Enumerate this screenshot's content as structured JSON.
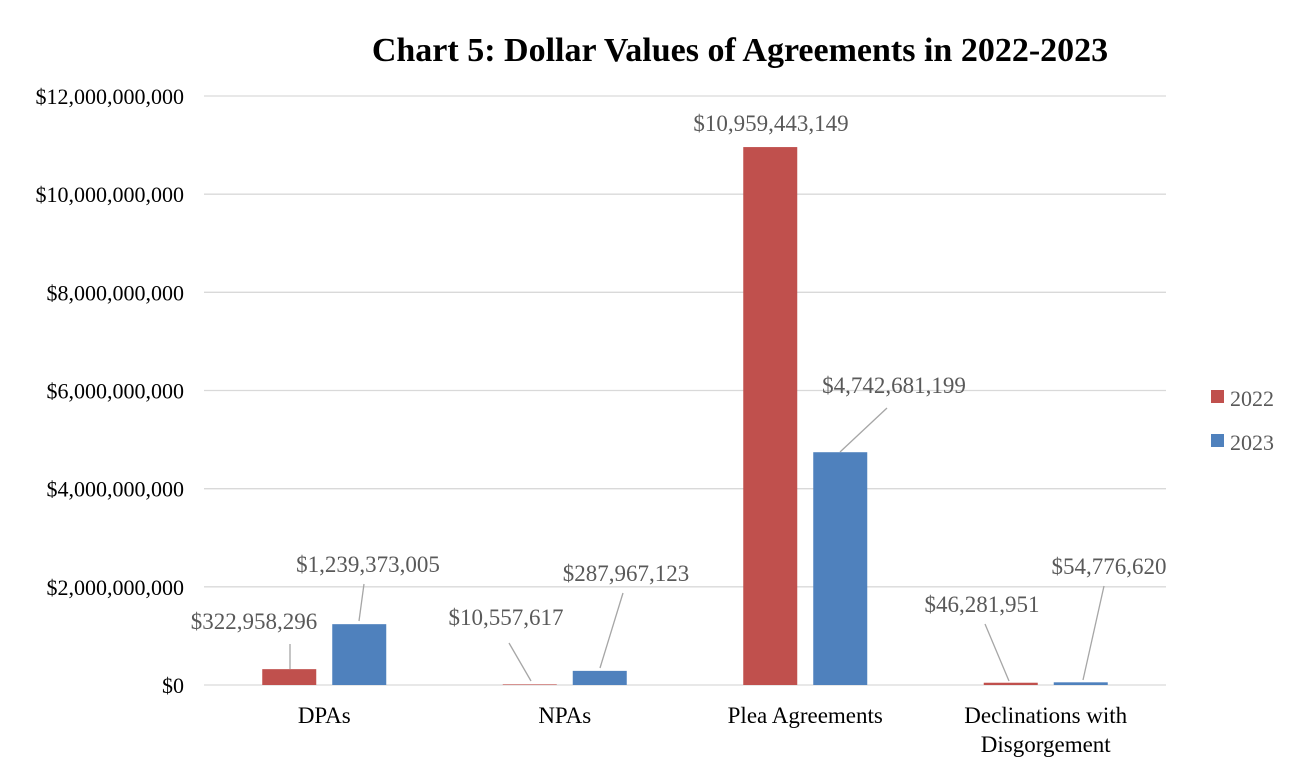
{
  "chart_data": {
    "type": "bar",
    "title": "Chart 5: Dollar Values of Agreements in 2022-2023",
    "xlabel": "",
    "ylabel": "",
    "ylim": [
      0,
      12000000000
    ],
    "yticks": [
      0,
      2000000000,
      4000000000,
      6000000000,
      8000000000,
      10000000000,
      12000000000
    ],
    "ytick_labels": [
      "$0",
      "$2,000,000,000",
      "$4,000,000,000",
      "$6,000,000,000",
      "$8,000,000,000",
      "$10,000,000,000",
      "$12,000,000,000"
    ],
    "categories": [
      [
        "DPAs"
      ],
      [
        "NPAs"
      ],
      [
        "Plea Agreements"
      ],
      [
        "Declinations with",
        "Disgorgement"
      ]
    ],
    "series": [
      {
        "name": "2022",
        "color": "#C0504D",
        "values": [
          322958296,
          10557617,
          10959443149,
          46281951
        ],
        "labels": [
          "$322,958,296",
          "$10,557,617",
          "$10,959,443,149",
          "$46,281,951"
        ]
      },
      {
        "name": "2023",
        "color": "#4F81BD",
        "values": [
          1239373005,
          287967123,
          4742681199,
          54776620
        ],
        "labels": [
          "$1,239,373,005",
          "$287,967,123",
          "$4,742,681,199",
          "$54,776,620"
        ]
      }
    ],
    "grid": true,
    "legend": "right",
    "gridline_color": "#D9D9D9",
    "leader_line_color": "#A6A6A6"
  }
}
